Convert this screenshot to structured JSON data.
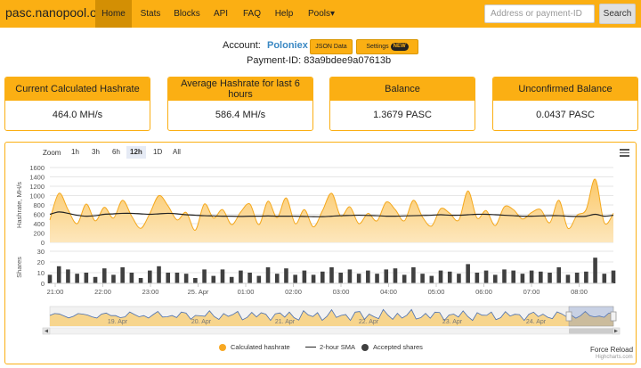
{
  "navbar": {
    "brand": "pasc.nanopool.org",
    "items": [
      {
        "label": "Home",
        "active": true
      },
      {
        "label": "Stats"
      },
      {
        "label": "Blocks"
      },
      {
        "label": "API"
      },
      {
        "label": "FAQ"
      },
      {
        "label": "Help"
      },
      {
        "label": "Pools▾"
      }
    ],
    "search_placeholder": "Address or payment-ID",
    "search_button": "Search"
  },
  "account": {
    "label": "Account:",
    "name": "Poloniex",
    "json_button": "JSON Data",
    "settings_button": "Settings",
    "settings_badge": "NEW",
    "payment_label": "Payment-ID:",
    "payment_id": "83a9bdee9a07613b"
  },
  "cards": [
    {
      "title": "Current Calculated Hashrate",
      "value": "464.0 MH/s"
    },
    {
      "title": "Average Hashrate for last 6 hours",
      "value": "586.4 MH/s"
    },
    {
      "title": "Balance",
      "value": "1.3679 PASC"
    },
    {
      "title": "Unconfirmed Balance",
      "value": "0.0437 PASC"
    }
  ],
  "chart_controls": {
    "zoom_label": "Zoom",
    "zoom_buttons": [
      "1h",
      "3h",
      "6h",
      "12h",
      "1D",
      "All"
    ],
    "active_zoom": "12h",
    "force_reload": "Force Reload",
    "credits": "Highcharts.com"
  },
  "colors": {
    "brand": "#fbaf13",
    "brand_dark": "#d38f04",
    "hashrate_fill": "#fbc868",
    "sma_line": "#222222",
    "shares_bar": "#404040",
    "link": "#3a88c3"
  },
  "chart_data": {
    "type": "area",
    "hashrate_axis": {
      "label": "Hashrate, MH/s",
      "ylim": [
        0,
        1600
      ],
      "ticks": [
        0,
        200,
        400,
        600,
        800,
        1000,
        1200,
        1400,
        1600
      ]
    },
    "shares_axis": {
      "label": "Shares",
      "ylim": [
        0,
        30
      ],
      "ticks": [
        0,
        10,
        20,
        30
      ]
    },
    "x_ticks": [
      "21:00",
      "22:00",
      "23:00",
      "25. Apr",
      "01:00",
      "02:00",
      "03:00",
      "04:00",
      "05:00",
      "06:00",
      "07:00",
      "08:00"
    ],
    "navigator_ticks": [
      "19. Apr",
      "20. Apr",
      "21. Apr",
      "22. Apr",
      "23. Apr",
      "24. Apr"
    ],
    "series": [
      {
        "name": "Calculated hashrate",
        "kind": "area",
        "values": [
          480,
          1050,
          700,
          400,
          820,
          460,
          750,
          520,
          900,
          560,
          300,
          620,
          1000,
          780,
          480,
          640,
          260,
          820,
          520,
          700,
          380,
          650,
          820,
          380,
          880,
          530,
          950,
          400,
          700,
          330,
          680,
          1050,
          560,
          760,
          400,
          620,
          460,
          860,
          700,
          460,
          900,
          540,
          350,
          720,
          620,
          480,
          1100,
          520,
          680,
          360,
          760,
          700,
          500,
          640,
          700,
          420,
          900,
          300,
          580,
          700,
          1350,
          420,
          620
        ]
      },
      {
        "name": "2-hour SMA",
        "kind": "line",
        "values": [
          600,
          650,
          620,
          580,
          560,
          570,
          600,
          610,
          620,
          620,
          610,
          600,
          610,
          620,
          610,
          590,
          580,
          570,
          565,
          560,
          560,
          555,
          560,
          560,
          565,
          560,
          560,
          560,
          555,
          550,
          550,
          560,
          570,
          575,
          580,
          575,
          570,
          560,
          560,
          565,
          570,
          575,
          580,
          590,
          580,
          580,
          590,
          600,
          600,
          590,
          580,
          570,
          560,
          560,
          565,
          570,
          570,
          560,
          555,
          560,
          600,
          560,
          580
        ]
      },
      {
        "name": "Accepted shares",
        "kind": "column",
        "values": [
          8,
          16,
          13,
          9,
          10,
          6,
          14,
          8,
          15,
          10,
          5,
          12,
          16,
          10,
          10,
          9,
          5,
          13,
          7,
          13,
          6,
          12,
          10,
          7,
          15,
          9,
          14,
          8,
          12,
          8,
          11,
          15,
          10,
          13,
          9,
          12,
          9,
          13,
          14,
          8,
          15,
          9,
          7,
          12,
          11,
          9,
          18,
          10,
          12,
          8,
          13,
          12,
          9,
          12,
          11,
          10,
          15,
          8,
          10,
          11,
          24,
          9,
          12
        ]
      }
    ]
  }
}
